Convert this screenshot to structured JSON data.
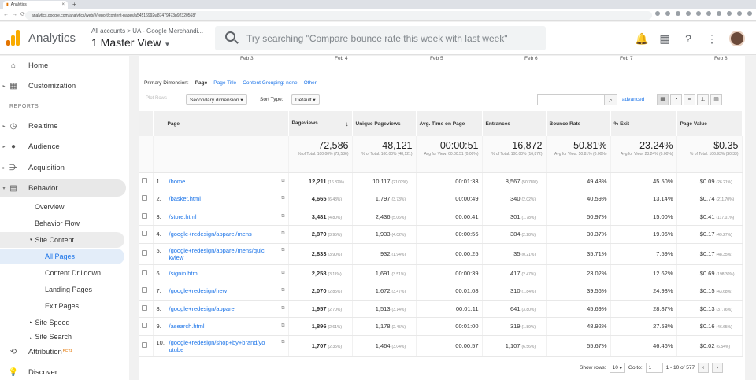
{
  "browser": {
    "tab_title": "Analytics",
    "url": "analytics.google.com/analytics/web/#/report/content-pages/a54516992w87479473p92320568/"
  },
  "header": {
    "app_name": "Analytics",
    "breadcrumb": "All accounts > UA - Google Merchandi...",
    "view_name": "1 Master View",
    "search_placeholder": "Try searching \"Compare bounce rate this week with last week\""
  },
  "sidebar": {
    "home": "Home",
    "customization": "Customization",
    "reports_label": "REPORTS",
    "realtime": "Realtime",
    "audience": "Audience",
    "acquisition": "Acquisition",
    "behavior": "Behavior",
    "overview": "Overview",
    "behavior_flow": "Behavior Flow",
    "site_content": "Site Content",
    "all_pages": "All Pages",
    "content_drilldown": "Content Drilldown",
    "landing_pages": "Landing Pages",
    "exit_pages": "Exit Pages",
    "site_speed": "Site Speed",
    "site_search": "Site Search",
    "attribution": "Attribution",
    "attribution_badge": "BETA",
    "discover": "Discover"
  },
  "timeline": [
    "Feb 3",
    "Feb 4",
    "Feb 5",
    "Feb 6",
    "Feb 7",
    "Feb 8"
  ],
  "dimension": {
    "label": "Primary Dimension:",
    "active": "Page",
    "page_title": "Page Title",
    "content_grouping": "Content Grouping: none",
    "other": "Other"
  },
  "controls": {
    "plot_rows": "Plot Rows",
    "secondary_dimension": "Secondary dimension",
    "sort_type_label": "Sort Type:",
    "sort_type_value": "Default",
    "advanced": "advanced"
  },
  "columns": {
    "page": "Page",
    "pageviews": "Pageviews",
    "unique_pageviews": "Unique Pageviews",
    "avg_time": "Avg. Time on Page",
    "entrances": "Entrances",
    "bounce_rate": "Bounce Rate",
    "exit": "% Exit",
    "page_value": "Page Value"
  },
  "summary": {
    "pageviews": "72,586",
    "pageviews_sub": "% of Total: 100.00% (72,586)",
    "unique_pageviews": "48,121",
    "unique_pageviews_sub": "% of Total: 100.00% (48,121)",
    "avg_time": "00:00:51",
    "avg_time_sub": "Avg for View: 00:00:51 (0.00%)",
    "entrances": "16,872",
    "entrances_sub": "% of Total: 100.00% (16,872)",
    "bounce_rate": "50.81%",
    "bounce_rate_sub": "Avg for View: 50.81% (0.00%)",
    "exit": "23.24%",
    "exit_sub": "Avg for View: 23.24% (0.00%)",
    "page_value": "$0.35",
    "page_value_sub": "% of Total: 106.93% ($0.33)"
  },
  "rows": [
    {
      "n": "1.",
      "page": "/home",
      "pv": "12,211",
      "pvp": "(16.82%)",
      "upv": "10,117",
      "upvp": "(21.02%)",
      "time": "00:01:33",
      "ent": "8,567",
      "entp": "(50.78%)",
      "br": "49.48%",
      "ex": "45.50%",
      "val": "$0.09",
      "valp": "(26.21%)"
    },
    {
      "n": "2.",
      "page": "/basket.html",
      "pv": "4,665",
      "pvp": "(6.43%)",
      "upv": "1,797",
      "upvp": "(3.73%)",
      "time": "00:00:49",
      "ent": "340",
      "entp": "(2.02%)",
      "br": "40.59%",
      "ex": "13.14%",
      "val": "$0.74",
      "valp": "(211.70%)"
    },
    {
      "n": "3.",
      "page": "/store.html",
      "pv": "3,481",
      "pvp": "(4.80%)",
      "upv": "2,436",
      "upvp": "(5.06%)",
      "time": "00:00:41",
      "ent": "301",
      "entp": "(1.78%)",
      "br": "50.97%",
      "ex": "15.00%",
      "val": "$0.41",
      "valp": "(117.01%)"
    },
    {
      "n": "4.",
      "page": "/google+redesign/apparel/mens",
      "pv": "2,870",
      "pvp": "(3.95%)",
      "upv": "1,933",
      "upvp": "(4.02%)",
      "time": "00:00:56",
      "ent": "384",
      "entp": "(2.28%)",
      "br": "30.37%",
      "ex": "19.06%",
      "val": "$0.17",
      "valp": "(49.27%)"
    },
    {
      "n": "5.",
      "page": "/google+redesign/apparel/mens/quickview",
      "pv": "2,833",
      "pvp": "(3.90%)",
      "upv": "932",
      "upvp": "(1.94%)",
      "time": "00:00:25",
      "ent": "35",
      "entp": "(0.21%)",
      "br": "35.71%",
      "ex": "7.59%",
      "val": "$0.17",
      "valp": "(48.35%)"
    },
    {
      "n": "6.",
      "page": "/signin.html",
      "pv": "2,258",
      "pvp": "(3.11%)",
      "upv": "1,691",
      "upvp": "(3.51%)",
      "time": "00:00:39",
      "ent": "417",
      "entp": "(2.47%)",
      "br": "23.02%",
      "ex": "12.62%",
      "val": "$0.69",
      "valp": "(198.30%)"
    },
    {
      "n": "7.",
      "page": "/google+redesign/new",
      "pv": "2,070",
      "pvp": "(2.85%)",
      "upv": "1,672",
      "upvp": "(3.47%)",
      "time": "00:01:08",
      "ent": "310",
      "entp": "(1.84%)",
      "br": "39.56%",
      "ex": "24.93%",
      "val": "$0.15",
      "valp": "(43.68%)"
    },
    {
      "n": "8.",
      "page": "/google+redesign/apparel",
      "pv": "1,957",
      "pvp": "(2.70%)",
      "upv": "1,513",
      "upvp": "(3.14%)",
      "time": "00:01:11",
      "ent": "641",
      "entp": "(3.80%)",
      "br": "45.69%",
      "ex": "28.87%",
      "val": "$0.13",
      "valp": "(37.76%)"
    },
    {
      "n": "9.",
      "page": "/asearch.html",
      "pv": "1,896",
      "pvp": "(2.61%)",
      "upv": "1,178",
      "upvp": "(2.45%)",
      "time": "00:01:00",
      "ent": "319",
      "entp": "(1.89%)",
      "br": "48.92%",
      "ex": "27.58%",
      "val": "$0.16",
      "valp": "(46.65%)"
    },
    {
      "n": "10.",
      "page": "/google+redesign/shop+by+brand/youtube",
      "pv": "1,707",
      "pvp": "(2.35%)",
      "upv": "1,464",
      "upvp": "(3.04%)",
      "time": "00:00:57",
      "ent": "1,107",
      "entp": "(6.56%)",
      "br": "55.67%",
      "ex": "46.46%",
      "val": "$0.02",
      "valp": "(6.54%)"
    }
  ],
  "pager": {
    "show_rows_label": "Show rows:",
    "show_rows_value": "10",
    "goto_label": "Go to:",
    "goto_value": "1",
    "range": "1 - 10 of 577"
  }
}
